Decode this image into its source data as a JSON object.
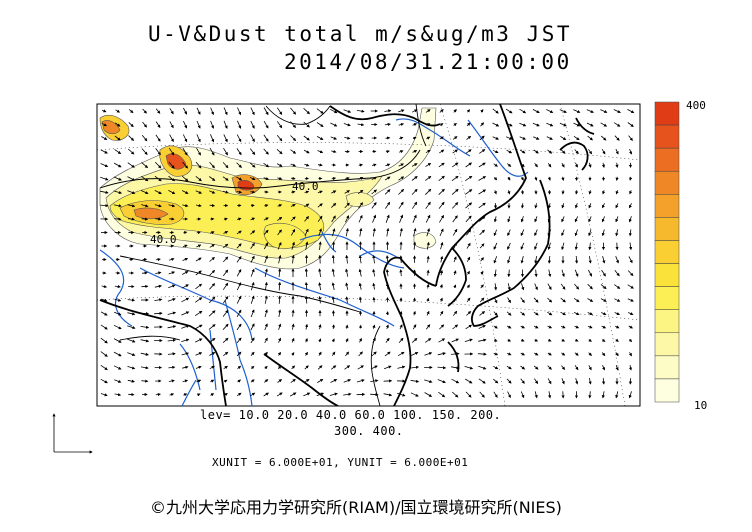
{
  "header": {
    "title": "U-V&Dust total m/s&ug/m3 JST",
    "datetime": "2014/08/31.21:00:00"
  },
  "legend": {
    "levels_line1": "lev= 10.0 20.0 40.0 60.0 100. 150. 200.",
    "levels_line2": "300. 400.",
    "max_label": "400",
    "min_label": "10",
    "colors": [
      "#fefee0",
      "#fdfbc6",
      "#fdf7a8",
      "#fcf483",
      "#fcef55",
      "#fbe23a",
      "#f9cf33",
      "#f6b92e",
      "#f3a12b",
      "#ef8726",
      "#eb6e22",
      "#e6531d",
      "#e03d17"
    ]
  },
  "footer": {
    "unit_text": "XUNIT = 6.000E+01, YUNIT = 6.000E+01",
    "credit": "©九州大学応用力学研究所(RIAM)/国立環境研究所(NIES)"
  },
  "map": {
    "contour_labels": [
      {
        "text": "40.0"
      },
      {
        "text": "40.0"
      }
    ]
  }
}
